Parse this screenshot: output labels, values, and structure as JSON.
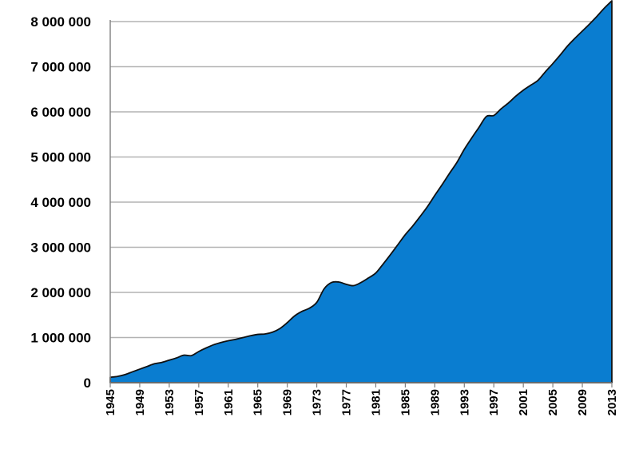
{
  "chart_data": {
    "type": "area",
    "title": "",
    "xlabel": "",
    "ylabel": "",
    "x": [
      1945,
      1946,
      1947,
      1948,
      1949,
      1950,
      1951,
      1952,
      1953,
      1954,
      1955,
      1956,
      1957,
      1958,
      1959,
      1960,
      1961,
      1962,
      1963,
      1964,
      1965,
      1966,
      1967,
      1968,
      1969,
      1970,
      1971,
      1972,
      1973,
      1974,
      1975,
      1976,
      1977,
      1978,
      1979,
      1980,
      1981,
      1982,
      1983,
      1984,
      1985,
      1986,
      1987,
      1988,
      1989,
      1990,
      1991,
      1992,
      1993,
      1994,
      1995,
      1996,
      1997,
      1998,
      1999,
      2000,
      2001,
      2002,
      2003,
      2004,
      2005,
      2006,
      2007,
      2008,
      2009,
      2010,
      2011,
      2012,
      2013
    ],
    "series": [
      {
        "values": [
          120000,
          140000,
          180000,
          240000,
          300000,
          360000,
          420000,
          450000,
          500000,
          550000,
          610000,
          600000,
          690000,
          770000,
          840000,
          890000,
          930000,
          960000,
          1000000,
          1040000,
          1070000,
          1080000,
          1120000,
          1200000,
          1330000,
          1480000,
          1580000,
          1650000,
          1780000,
          2080000,
          2220000,
          2230000,
          2180000,
          2150000,
          2220000,
          2320000,
          2430000,
          2630000,
          2840000,
          3060000,
          3280000,
          3470000,
          3680000,
          3900000,
          4150000,
          4390000,
          4640000,
          4880000,
          5170000,
          5420000,
          5660000,
          5900000,
          5920000,
          6070000,
          6200000,
          6350000,
          6480000,
          6590000,
          6700000,
          6890000,
          7070000,
          7260000,
          7460000,
          7630000,
          7790000,
          7950000,
          8120000,
          8300000,
          8460000
        ],
        "color": "#0a7dd0"
      }
    ],
    "ylim": [
      0,
      8000000
    ],
    "xlim": [
      1945,
      2013
    ],
    "y_ticks": [
      "0",
      "1 000 000",
      "2 000 000",
      "3 000 000",
      "4 000 000",
      "5 000 000",
      "6 000 000",
      "7 000 000",
      "8 000 000"
    ],
    "y_tick_values": [
      0,
      1000000,
      2000000,
      3000000,
      4000000,
      5000000,
      6000000,
      7000000,
      8000000
    ],
    "x_ticks": [
      "1945",
      "1949",
      "1953",
      "1957",
      "1961",
      "1965",
      "1969",
      "1973",
      "1977",
      "1981",
      "1985",
      "1989",
      "1993",
      "1997",
      "2001",
      "2005",
      "2009",
      "2013"
    ],
    "grid": true,
    "legend": "none"
  }
}
